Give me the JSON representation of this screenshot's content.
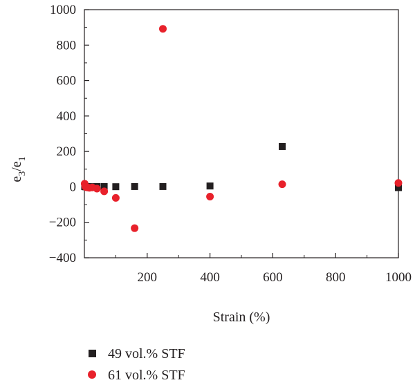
{
  "chart_data": {
    "type": "scatter",
    "xlabel": "Strain (%)",
    "ylabel_main": "e",
    "ylabel_sub1": "3",
    "ylabel_slash": "/e",
    "ylabel_sub2": "1",
    "xlim": [
      0,
      1000
    ],
    "ylim": [
      -400,
      1000
    ],
    "x_ticks": [
      200,
      400,
      600,
      800,
      1000
    ],
    "x_tick_labels": [
      "200",
      "400",
      "600",
      "800",
      "1000"
    ],
    "y_ticks": [
      -400,
      -200,
      0,
      200,
      400,
      600,
      800,
      1000
    ],
    "y_tick_labels": [
      "−400",
      "−200",
      "0",
      "200",
      "400",
      "600",
      "800",
      "1000"
    ],
    "grid": false,
    "legend_position": "bottom-left",
    "series": [
      {
        "name": "49 vol.% STF",
        "marker": "square",
        "color": "#231f20",
        "x": [
          1,
          2.5,
          4,
          6.3,
          10,
          16,
          25,
          40,
          63,
          100,
          160,
          250,
          400,
          630,
          1000
        ],
        "y": [
          2,
          1,
          1,
          1,
          1,
          1,
          1,
          2,
          2,
          1,
          2,
          2,
          5,
          228,
          -4
        ]
      },
      {
        "name": "61 vol.% STF",
        "marker": "circle",
        "color": "#e8212b",
        "x": [
          1,
          2.5,
          4,
          6.3,
          10,
          16,
          25,
          40,
          63,
          100,
          160,
          250,
          400,
          630,
          1000
        ],
        "y": [
          18,
          5,
          0,
          -2,
          -3,
          -5,
          -3,
          -10,
          -25,
          -62,
          -233,
          892,
          -55,
          15,
          22
        ]
      }
    ]
  }
}
